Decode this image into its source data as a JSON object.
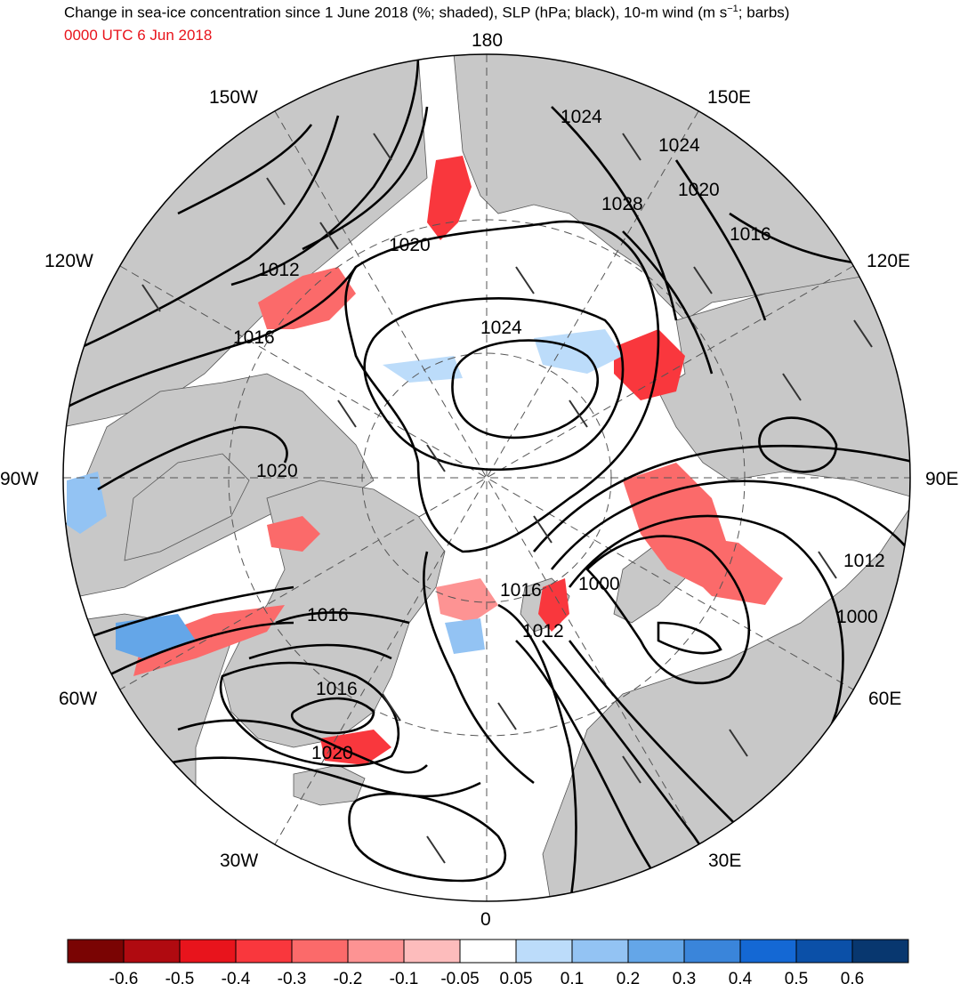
{
  "title": {
    "main": "Change in sea-ice concentration since 1 June 2018 (%; shaded), SLP (hPa; black), 10-m wind (m s",
    "sup": "−1",
    "tail": "; barbs)"
  },
  "valid_time": "0000 UTC 6 Jun 2018",
  "longitude_labels": {
    "top": "180",
    "bottom": "0",
    "left": "90W",
    "right": "90E",
    "nw_upper": "150W",
    "nw_lower": "120W",
    "ne_upper": "150E",
    "ne_lower": "120E",
    "sw_upper": "60W",
    "sw_lower": "30W",
    "se_upper": "60E",
    "se_lower": "30E"
  },
  "slp_contour_labels": [
    "1024",
    "1024",
    "1020",
    "1028",
    "1016",
    "1020",
    "1012",
    "1016",
    "1024",
    "1020",
    "1012",
    "1016",
    "1000",
    "1012",
    "1000",
    "1016",
    "1016",
    "1020"
  ],
  "colorbar": {
    "labels": [
      "-0.6",
      "-0.5",
      "-0.4",
      "-0.3",
      "-0.2",
      "-0.1",
      "-0.05",
      "0.05",
      "0.1",
      "0.2",
      "0.3",
      "0.4",
      "0.5",
      "0.6"
    ],
    "colors": [
      "#7a0403",
      "#b00a10",
      "#e8141c",
      "#f9373d",
      "#fb6a6a",
      "#fd9393",
      "#fdbcbc",
      "#ffffff",
      "#bcdcfa",
      "#93c3f3",
      "#64a6e8",
      "#3a85da",
      "#1468d4",
      "#0b50a8",
      "#08376f"
    ]
  },
  "colors": {
    "land": "#c8c8c8",
    "ocean": "#ffffff",
    "contour": "#000000",
    "title_time": "#e8141c"
  }
}
